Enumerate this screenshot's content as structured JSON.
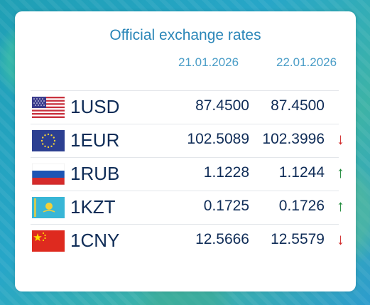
{
  "title": "Official exchange rates",
  "dates": [
    "21.01.2026",
    "22.01.2026"
  ],
  "rates": [
    {
      "code": "1USD",
      "v1": "87.4500",
      "v2": "87.4500",
      "trend": "",
      "flag": "us-flag"
    },
    {
      "code": "1EUR",
      "v1": "102.5089",
      "v2": "102.3996",
      "trend": "↓",
      "flag": "eu-flag"
    },
    {
      "code": "1RUB",
      "v1": "1.1228",
      "v2": "1.1244",
      "trend": "↑",
      "flag": "ru-flag"
    },
    {
      "code": "1KZT",
      "v1": "0.1725",
      "v2": "0.1726",
      "trend": "↑",
      "flag": "kz-flag"
    },
    {
      "code": "1CNY",
      "v1": "12.5666",
      "v2": "12.5579",
      "trend": "↓",
      "flag": "cn-flag"
    }
  ],
  "colors": {
    "up": "#1f8a3a",
    "down": "#d12a2a",
    "text": "#0f2c57",
    "accent": "#2a86b8"
  }
}
